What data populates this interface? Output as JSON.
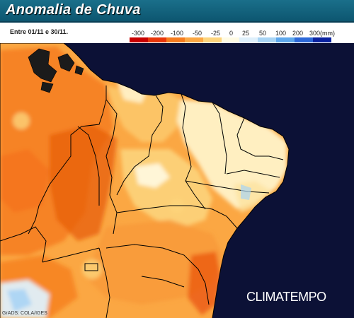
{
  "header": {
    "title": "Anomalia de Chuva"
  },
  "period": "Entre 01/11 e 30/11.",
  "legend": {
    "labels": [
      "-300",
      "-200",
      "-100",
      "-50",
      "-25",
      "0",
      "25",
      "50",
      "100",
      "200",
      "300(mm)"
    ],
    "colors": [
      "#c80000",
      "#e8360a",
      "#f67c1e",
      "#fba743",
      "#fdd47c",
      "#fffbe4",
      "#dff0fb",
      "#a8d4f4",
      "#5ea8ec",
      "#2c68d8",
      "#0a22a0"
    ]
  },
  "credit": "GrADS: COLA/IGES",
  "logo": "CLIMATEMPO",
  "colors": {
    "ocean": "#0c1136",
    "title_bar": "#12627d"
  }
}
